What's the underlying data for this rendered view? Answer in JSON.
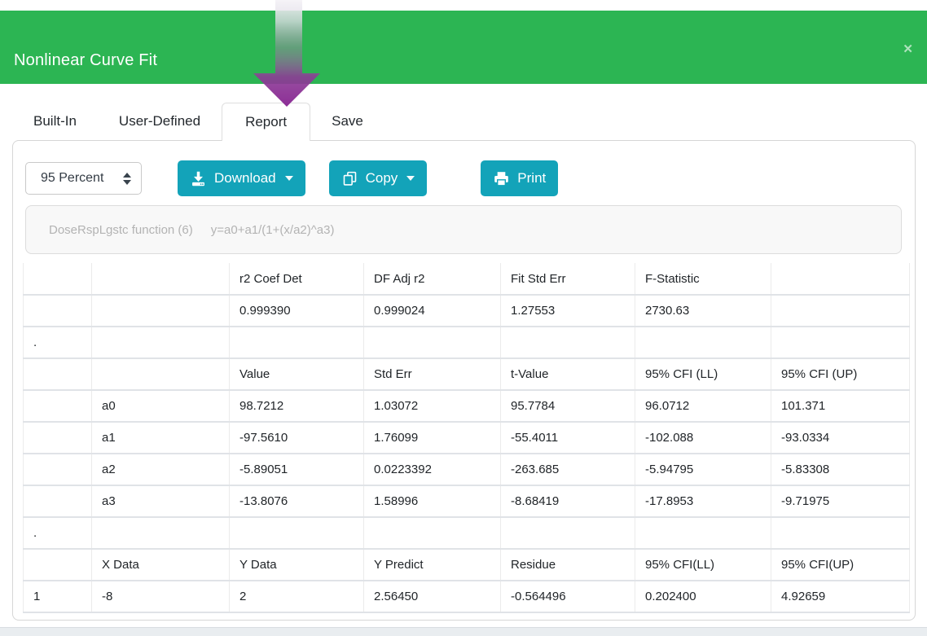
{
  "modal": {
    "title": "Nonlinear Curve Fit",
    "close_icon": "✕"
  },
  "tabs": [
    {
      "label": "Built-In",
      "active": false
    },
    {
      "label": "User-Defined",
      "active": false
    },
    {
      "label": "Report",
      "active": true
    },
    {
      "label": "Save",
      "active": false
    }
  ],
  "toolbar": {
    "interval_select": {
      "value": "95 Percent"
    },
    "download": {
      "label": "Download"
    },
    "copy": {
      "label": "Copy"
    },
    "print": {
      "label": "Print"
    }
  },
  "function_box": {
    "function_name": "DoseRspLgstc function (6)",
    "formula": "y=a0+a1/(1+(x/a2)^a3)"
  },
  "report_table": {
    "rows": [
      [
        "",
        "",
        "r2 Coef Det",
        "DF Adj r2",
        "Fit Std Err",
        "F-Statistic",
        ""
      ],
      [
        "",
        "",
        "0.999390",
        "0.999024",
        "1.27553",
        "2730.63",
        ""
      ],
      [
        ".",
        "",
        "",
        "",
        "",
        "",
        ""
      ],
      [
        "",
        "",
        "Value",
        "Std Err",
        "t-Value",
        "95% CFI (LL)",
        "95% CFI (UP)"
      ],
      [
        "",
        "a0",
        "98.7212",
        "1.03072",
        "95.7784",
        "96.0712",
        "101.371"
      ],
      [
        "",
        "a1",
        "-97.5610",
        "1.76099",
        "-55.4011",
        "-102.088",
        "-93.0334"
      ],
      [
        "",
        "a2",
        "-5.89051",
        "0.0223392",
        "-263.685",
        "-5.94795",
        "-5.83308"
      ],
      [
        "",
        "a3",
        "-13.8076",
        "1.58996",
        "-8.68419",
        "-17.8953",
        "-9.71975"
      ],
      [
        ".",
        "",
        "",
        "",
        "",
        "",
        ""
      ],
      [
        "",
        "X Data",
        "Y Data",
        "Y Predict",
        "Residue",
        "95% CFI(LL)",
        "95% CFI(UP)"
      ],
      [
        "1",
        "-8",
        "2",
        "2.56450",
        "-0.564496",
        "0.202400",
        "4.92659"
      ]
    ]
  },
  "colors": {
    "header_green": "#2cb553",
    "button_teal": "#13a3b9",
    "arrow_purple": "#8c2d96"
  }
}
